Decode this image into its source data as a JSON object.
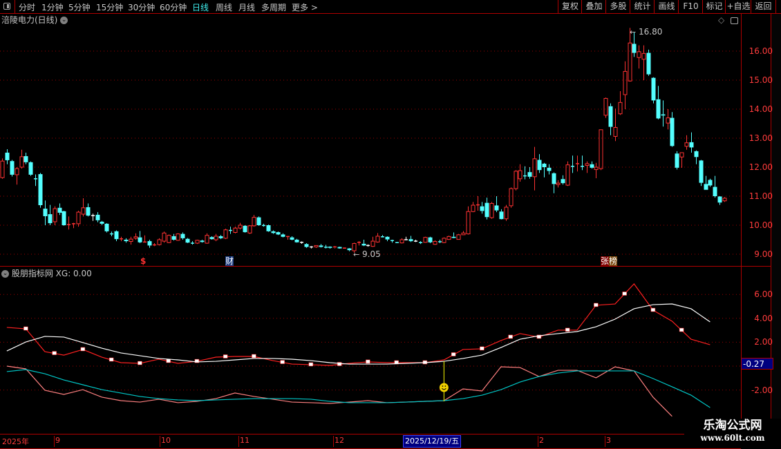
{
  "toolbar": {
    "periods": [
      "分时",
      "1分钟",
      "5分钟",
      "15分钟",
      "30分钟",
      "60分钟",
      "日线",
      "周线",
      "月线",
      "多周期",
      "更多 >"
    ],
    "active_period": "日线",
    "buttons": [
      "复权",
      "叠加",
      "多股",
      "统计",
      "画线",
      "F10",
      "标记",
      "+自选",
      "返回"
    ]
  },
  "main_panel": {
    "title": "涪陵电力(日线)",
    "price_ticks": [
      "16.00",
      "15.00",
      "14.00",
      "13.00",
      "12.00",
      "11.00",
      "10.00",
      "9.00"
    ],
    "high_label": "16.80",
    "low_label": "9.05",
    "events": {
      "dollar": "$",
      "finance": "财",
      "limit_list_1": "张",
      "limit_list_2": "榜"
    }
  },
  "indicator_panel": {
    "name": "股朋指标网",
    "value_label": "XG: 0.00",
    "ticks": [
      "6.00",
      "4.00",
      "2.00",
      "-2.00"
    ],
    "current_value": "-0.27"
  },
  "x_axis": {
    "labels": [
      "2025年",
      "9",
      "10",
      "11",
      "12",
      "2",
      "3"
    ],
    "crosshair_date": "2025/12/19/五"
  },
  "watermark": {
    "line1": "乐淘公式网",
    "line2": "www.60lt.com"
  },
  "colors": {
    "up": "#ff3232",
    "down": "#54ffff",
    "doji": "#ffffff",
    "grid": "#a00000",
    "axis_text": "#ff3c3c",
    "highlight_bg": "#000080"
  },
  "chart_data": [
    {
      "type": "candlestick",
      "ylim": [
        9,
        16.8
      ],
      "candle_format": [
        "open",
        "high",
        "low",
        "close"
      ],
      "candles": [
        [
          11.64,
          12.3,
          11.6,
          12.21
        ],
        [
          12.5,
          12.62,
          12.1,
          12.24
        ],
        [
          12.21,
          12.25,
          11.68,
          11.74
        ],
        [
          11.74,
          12.0,
          11.4,
          11.95
        ],
        [
          12.0,
          12.6,
          11.95,
          12.36
        ],
        [
          12.38,
          12.5,
          12.1,
          12.17
        ],
        [
          12.17,
          12.2,
          11.7,
          11.74
        ],
        [
          11.6,
          11.75,
          11.35,
          11.6
        ],
        [
          11.76,
          11.8,
          10.6,
          10.69
        ],
        [
          10.57,
          10.85,
          10.0,
          10.31
        ],
        [
          10.38,
          10.7,
          10.0,
          10.07
        ],
        [
          10.12,
          10.65,
          10.0,
          10.57
        ],
        [
          10.6,
          10.75,
          10.35,
          10.43
        ],
        [
          10.48,
          10.5,
          9.98,
          10.0
        ],
        [
          10.02,
          10.3,
          9.85,
          10.02
        ],
        [
          10.05,
          10.08,
          9.9,
          10.05
        ],
        [
          10.05,
          10.5,
          9.95,
          10.45
        ],
        [
          10.38,
          10.93,
          10.3,
          10.6
        ],
        [
          10.62,
          10.75,
          10.3,
          10.33
        ],
        [
          10.33,
          10.4,
          10.15,
          10.33
        ],
        [
          10.36,
          10.45,
          10.1,
          10.17
        ],
        [
          10.12,
          10.15,
          10.0,
          10.05
        ],
        [
          10.05,
          10.07,
          9.75,
          9.79
        ],
        [
          9.7,
          9.78,
          9.62,
          9.7
        ],
        [
          9.79,
          9.82,
          9.45,
          9.52
        ],
        [
          9.53,
          9.6,
          9.45,
          9.53
        ],
        [
          9.5,
          9.55,
          9.4,
          9.45
        ],
        [
          9.44,
          9.6,
          9.33,
          9.52
        ],
        [
          9.55,
          9.72,
          9.5,
          9.6
        ],
        [
          9.58,
          9.8,
          9.38,
          9.41
        ],
        [
          9.4,
          9.65,
          9.4,
          9.42
        ],
        [
          9.45,
          9.5,
          9.22,
          9.3
        ],
        [
          9.3,
          9.38,
          9.28,
          9.32
        ],
        [
          9.33,
          9.55,
          9.3,
          9.5
        ],
        [
          9.45,
          9.78,
          9.4,
          9.73
        ],
        [
          9.4,
          9.68,
          9.38,
          9.65
        ],
        [
          9.62,
          9.7,
          9.47,
          9.5
        ],
        [
          9.48,
          9.72,
          9.46,
          9.7
        ],
        [
          9.7,
          9.75,
          9.5,
          9.55
        ],
        [
          9.53,
          9.56,
          9.38,
          9.4
        ],
        [
          9.38,
          9.45,
          9.33,
          9.38
        ],
        [
          9.38,
          9.5,
          9.35,
          9.48
        ],
        [
          9.47,
          9.5,
          9.4,
          9.42
        ],
        [
          9.38,
          9.72,
          9.36,
          9.65
        ],
        [
          9.59,
          9.62,
          9.5,
          9.52
        ],
        [
          9.5,
          9.7,
          9.45,
          9.62
        ],
        [
          9.62,
          9.66,
          9.52,
          9.55
        ],
        [
          9.55,
          9.88,
          9.52,
          9.84
        ],
        [
          9.82,
          9.95,
          9.7,
          9.82
        ],
        [
          9.75,
          9.95,
          9.72,
          9.9
        ],
        [
          9.9,
          10.08,
          9.85,
          10.0
        ],
        [
          9.98,
          10.0,
          9.74,
          9.76
        ],
        [
          9.73,
          10.0,
          9.7,
          9.98
        ],
        [
          9.98,
          10.35,
          9.95,
          10.27
        ],
        [
          10.27,
          10.3,
          9.98,
          10.0
        ],
        [
          9.99,
          10.05,
          9.95,
          9.99
        ],
        [
          10.0,
          10.02,
          9.77,
          9.79
        ],
        [
          9.79,
          9.82,
          9.7,
          9.73
        ],
        [
          9.76,
          9.78,
          9.66,
          9.68
        ],
        [
          9.68,
          9.72,
          9.58,
          9.6
        ],
        [
          9.6,
          9.62,
          9.5,
          9.61
        ],
        [
          9.58,
          9.62,
          9.48,
          9.5
        ],
        [
          9.5,
          9.53,
          9.4,
          9.41
        ],
        [
          9.41,
          9.44,
          9.36,
          9.41
        ],
        [
          9.35,
          9.38,
          9.22,
          9.25
        ],
        [
          9.25,
          9.28,
          9.2,
          9.25
        ],
        [
          9.25,
          9.3,
          9.22,
          9.3
        ],
        [
          9.3,
          9.35,
          9.23,
          9.25
        ],
        [
          9.24,
          9.32,
          9.2,
          9.24
        ],
        [
          9.26,
          9.27,
          9.19,
          9.22
        ],
        [
          9.22,
          9.28,
          9.2,
          9.25
        ],
        [
          9.25,
          9.26,
          9.19,
          9.2
        ],
        [
          9.21,
          9.23,
          9.19,
          9.21
        ],
        [
          9.2,
          9.21,
          9.1,
          9.14
        ],
        [
          9.12,
          9.4,
          9.05,
          9.37
        ],
        [
          9.41,
          9.45,
          9.3,
          9.41
        ],
        [
          9.36,
          9.5,
          9.28,
          9.3
        ],
        [
          9.3,
          9.34,
          9.26,
          9.3
        ],
        [
          9.27,
          9.6,
          9.25,
          9.45
        ],
        [
          9.42,
          9.73,
          9.4,
          9.62
        ],
        [
          9.6,
          9.66,
          9.58,
          9.6
        ],
        [
          9.6,
          9.62,
          9.45,
          9.51
        ],
        [
          9.47,
          9.5,
          9.4,
          9.47
        ],
        [
          9.4,
          9.42,
          9.38,
          9.4
        ],
        [
          9.39,
          9.55,
          9.37,
          9.5
        ],
        [
          9.5,
          9.6,
          9.48,
          9.5
        ],
        [
          9.52,
          9.63,
          9.42,
          9.45
        ],
        [
          9.45,
          9.5,
          9.42,
          9.45
        ],
        [
          9.4,
          9.45,
          9.35,
          9.4
        ],
        [
          9.41,
          9.6,
          9.4,
          9.58
        ],
        [
          9.58,
          9.6,
          9.38,
          9.41
        ],
        [
          9.34,
          9.48,
          9.32,
          9.44
        ],
        [
          9.43,
          9.5,
          9.38,
          9.43
        ],
        [
          9.4,
          9.58,
          9.38,
          9.55
        ],
        [
          9.51,
          9.64,
          9.49,
          9.61
        ],
        [
          9.6,
          9.75,
          9.55,
          9.56
        ],
        [
          9.51,
          9.7,
          9.5,
          9.67
        ],
        [
          9.67,
          9.8,
          9.66,
          9.73
        ],
        [
          9.7,
          10.65,
          9.68,
          10.47
        ],
        [
          10.47,
          10.8,
          10.45,
          10.69
        ],
        [
          10.7,
          11.0,
          10.5,
          10.7
        ],
        [
          10.65,
          10.8,
          10.4,
          10.49
        ],
        [
          10.77,
          10.95,
          10.2,
          10.28
        ],
        [
          10.26,
          10.8,
          10.22,
          10.75
        ],
        [
          10.68,
          11.0,
          10.45,
          10.51
        ],
        [
          10.47,
          10.55,
          10.2,
          10.21
        ],
        [
          10.22,
          10.7,
          10.15,
          10.62
        ],
        [
          10.67,
          11.3,
          10.6,
          11.26
        ],
        [
          11.26,
          11.9,
          11.2,
          11.86
        ],
        [
          11.6,
          12.1,
          11.5,
          11.88
        ],
        [
          11.7,
          12.03,
          11.58,
          11.7
        ],
        [
          11.83,
          12.0,
          11.6,
          11.67
        ],
        [
          11.67,
          12.7,
          11.2,
          12.29
        ],
        [
          12.25,
          12.45,
          11.8,
          11.9
        ],
        [
          12.12,
          12.15,
          11.65,
          12.0
        ],
        [
          11.98,
          12.1,
          11.75,
          11.87
        ],
        [
          11.79,
          11.82,
          11.1,
          11.42
        ],
        [
          11.4,
          11.55,
          11.3,
          11.45
        ],
        [
          11.59,
          11.72,
          11.4,
          11.45
        ],
        [
          11.38,
          12.2,
          11.35,
          12.08
        ],
        [
          12.03,
          12.4,
          11.8,
          12.03
        ],
        [
          12.12,
          12.4,
          11.85,
          12.12
        ],
        [
          12.03,
          12.4,
          11.9,
          12.03
        ],
        [
          12.06,
          12.2,
          11.8,
          12.12
        ],
        [
          12.1,
          12.2,
          11.95,
          11.98
        ],
        [
          11.92,
          12.15,
          11.62,
          12.0
        ],
        [
          11.95,
          13.3,
          11.9,
          13.29
        ],
        [
          13.79,
          14.4,
          13.7,
          14.37
        ],
        [
          14.1,
          14.2,
          13.1,
          13.39
        ],
        [
          13.06,
          14.02,
          12.9,
          13.37
        ],
        [
          13.84,
          14.62,
          13.8,
          14.23
        ],
        [
          14.5,
          15.65,
          14.0,
          15.3
        ],
        [
          14.97,
          16.8,
          14.95,
          16.28
        ],
        [
          16.25,
          16.65,
          15.8,
          15.94
        ],
        [
          15.78,
          16.2,
          15.4,
          15.98
        ],
        [
          15.72,
          16.2,
          15.0,
          15.92
        ],
        [
          15.94,
          16.05,
          15.15,
          15.2
        ],
        [
          15.08,
          15.1,
          14.2,
          14.3
        ],
        [
          14.34,
          14.8,
          13.65,
          13.68
        ],
        [
          13.82,
          14.3,
          13.4,
          13.78
        ],
        [
          13.52,
          14.0,
          13.3,
          13.7
        ],
        [
          13.7,
          13.9,
          12.7,
          12.73
        ],
        [
          12.47,
          12.55,
          11.92,
          11.98
        ],
        [
          12.35,
          12.5,
          11.98,
          12.5
        ],
        [
          12.72,
          13.1,
          12.6,
          12.84
        ],
        [
          12.86,
          13.2,
          12.5,
          12.68
        ],
        [
          12.55,
          12.58,
          12.1,
          12.35
        ],
        [
          12.23,
          12.25,
          11.35,
          11.46
        ],
        [
          11.42,
          11.7,
          11.22,
          11.22
        ],
        [
          11.56,
          11.6,
          11.32,
          11.37
        ],
        [
          11.32,
          11.7,
          10.95,
          11.0
        ],
        [
          10.99,
          11.0,
          10.7,
          10.78
        ],
        [
          10.84,
          10.97,
          10.8,
          10.93
        ]
      ]
    },
    {
      "type": "line",
      "ylim": [
        -3.5,
        7.5
      ],
      "series": [
        {
          "color": "#ff2020",
          "markers": true,
          "values": [
            3.24,
            3.12,
            1.21,
            0.92,
            1.39,
            0.75,
            0.29,
            0.23,
            0.58,
            0.23,
            0.4,
            0.75,
            0.81,
            0.81,
            0.46,
            0.17,
            0.12,
            0.06,
            0.23,
            0.35,
            0.29,
            0.29,
            0.29,
            0.52,
            1.39,
            1.45,
            2.14,
            2.72,
            2.43,
            3.01,
            3.01,
            5.09,
            5.2,
            6.88,
            4.68,
            3.76,
            2.25,
            1.79
          ]
        },
        {
          "color": "#ffffff",
          "values": [
            1.27,
            2.02,
            2.49,
            2.43,
            1.97,
            1.5,
            1.1,
            0.87,
            0.64,
            0.52,
            0.35,
            0.4,
            0.52,
            0.64,
            0.64,
            0.58,
            0.46,
            0.29,
            0.17,
            0.17,
            0.17,
            0.23,
            0.29,
            0.4,
            0.64,
            0.92,
            1.56,
            2.25,
            2.54,
            2.72,
            2.89,
            3.29,
            3.93,
            4.8,
            5.14,
            5.2,
            4.8,
            3.7
          ]
        },
        {
          "color": "#ff8080",
          "values": [
            0,
            -0.23,
            -2.02,
            -2.37,
            -1.97,
            -2.6,
            -2.89,
            -3.01,
            -2.77,
            -3.06,
            -2.95,
            -2.72,
            -2.25,
            -2.54,
            -2.77,
            -3.01,
            -3.06,
            -3.12,
            -3.01,
            -2.89,
            -3.06,
            -3.01,
            -2.95,
            -2.89,
            -1.91,
            -2.08,
            -0.06,
            -0.12,
            -0.87,
            -0.35,
            -0.35,
            -0.98,
            -0.06,
            -0.4,
            -2.6,
            -4.2
          ]
        },
        {
          "color": "#00c8c8",
          "values": [
            -0.46,
            -0.29,
            -0.64,
            -1.16,
            -1.56,
            -1.97,
            -2.25,
            -2.54,
            -2.72,
            -2.83,
            -2.89,
            -2.83,
            -2.77,
            -2.72,
            -2.72,
            -2.72,
            -2.77,
            -2.95,
            -3.06,
            -3.06,
            -3.06,
            -3.01,
            -2.95,
            -2.89,
            -2.72,
            -2.43,
            -1.97,
            -1.33,
            -0.87,
            -0.58,
            -0.4,
            -0.4,
            -0.4,
            -0.4,
            -1.04,
            -1.73,
            -2.43,
            -3.47
          ]
        }
      ]
    }
  ]
}
